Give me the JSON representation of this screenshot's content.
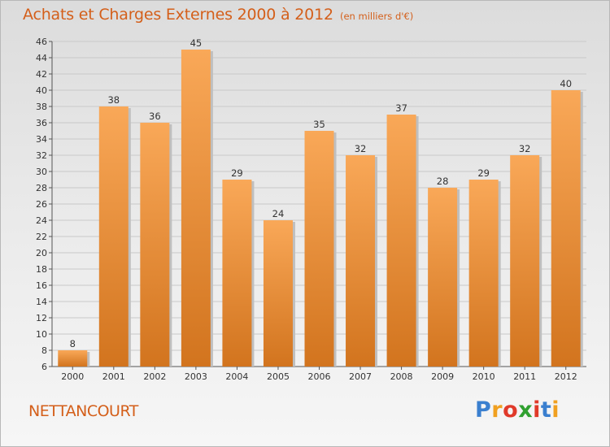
{
  "header": {
    "title": "Achats et Charges Externes 2000 à 2012",
    "subtitle": "(en milliers d'€)"
  },
  "footer": {
    "commune": "NETTANCOURT",
    "logo_letters": [
      {
        "ch": "P",
        "color": "#3a7fcf"
      },
      {
        "ch": "r",
        "color": "#f0a020"
      },
      {
        "ch": "o",
        "color": "#e03a2a"
      },
      {
        "ch": "x",
        "color": "#30a030"
      },
      {
        "ch": "i",
        "color": "#e03a2a"
      },
      {
        "ch": "t",
        "color": "#3a7fcf"
      },
      {
        "ch": "i",
        "color": "#f0a020"
      }
    ]
  },
  "chart_data": {
    "type": "bar",
    "title": "Achats et Charges Externes 2000 à 2012",
    "subtitle": "(en milliers d'€)",
    "xlabel": "",
    "ylabel": "",
    "categories": [
      "2000",
      "2001",
      "2002",
      "2003",
      "2004",
      "2005",
      "2006",
      "2007",
      "2008",
      "2009",
      "2010",
      "2011",
      "2012"
    ],
    "values": [
      8,
      38,
      36,
      45,
      29,
      24,
      35,
      32,
      37,
      28,
      29,
      32,
      40
    ],
    "ylim": [
      6,
      46
    ],
    "yticks": [
      6,
      8,
      10,
      12,
      14,
      16,
      18,
      20,
      22,
      24,
      26,
      28,
      30,
      32,
      34,
      36,
      38,
      40,
      42,
      44,
      46
    ],
    "grid": true,
    "bar_color_top": "#f9a858",
    "bar_color_bottom": "#d2741e"
  }
}
